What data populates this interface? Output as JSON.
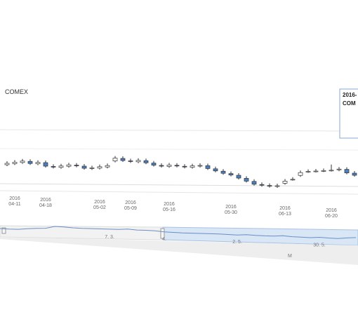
{
  "chart_data": [
    {
      "type": "candlestick",
      "title": "COMEX",
      "categories": [
        null,
        "2016\n04-11",
        null,
        null,
        null,
        "2016\n04-18",
        null,
        null,
        null,
        null,
        null,
        null,
        "2016\n05-02",
        null,
        null,
        null,
        "2016\n05-09",
        null,
        null,
        null,
        null,
        "2016\n05-16",
        null,
        null,
        null,
        null,
        null,
        null,
        null,
        "2016\n05-30",
        null,
        null,
        null,
        null,
        null,
        null,
        "2016\n06-13",
        null,
        null,
        null,
        null,
        null,
        "2016\n06-20",
        null,
        null,
        null
      ],
      "open": [
        45,
        47,
        49,
        51,
        48,
        50,
        45,
        44,
        46,
        48,
        47,
        44,
        45,
        47,
        56,
        60,
        57,
        56,
        58,
        55,
        52,
        51,
        53,
        52,
        51,
        53,
        54,
        50,
        47,
        44,
        42,
        38,
        34,
        30,
        29,
        28,
        33,
        39,
        45,
        51,
        52,
        53,
        54,
        55,
        56,
        51
      ],
      "high": [
        50,
        52,
        54,
        54,
        53,
        53,
        48,
        49,
        51,
        51,
        50,
        48,
        50,
        52,
        63,
        63,
        60,
        61,
        61,
        58,
        55,
        56,
        56,
        55,
        56,
        57,
        57,
        53,
        50,
        47,
        45,
        41,
        37,
        33,
        32,
        32,
        39,
        42,
        52,
        54,
        55,
        56,
        62,
        59,
        59,
        54
      ],
      "low": [
        43,
        45,
        47,
        46,
        46,
        43,
        42,
        42,
        44,
        45,
        42,
        42,
        43,
        45,
        54,
        55,
        54,
        54,
        53,
        50,
        49,
        49,
        50,
        49,
        49,
        51,
        48,
        45,
        42,
        40,
        36,
        32,
        28,
        27,
        26,
        26,
        31,
        37,
        43,
        49,
        50,
        51,
        52,
        53,
        49,
        46
      ],
      "close": [
        47,
        49,
        51,
        48,
        50,
        45,
        44,
        46,
        48,
        47,
        44,
        45,
        47,
        49,
        60,
        57,
        56,
        58,
        55,
        52,
        51,
        53,
        52,
        51,
        53,
        54,
        50,
        47,
        44,
        42,
        38,
        34,
        30,
        29,
        28,
        29,
        36,
        39,
        49,
        51,
        52,
        53,
        54,
        56,
        51,
        48
      ],
      "up_color": "#ffffff",
      "down_color": "#4a7fc1",
      "ylim": [
        0,
        100
      ],
      "tooltip": {
        "date": "2016-",
        "series": "COM"
      }
    },
    {
      "type": "line",
      "color": "#6a8fc2",
      "ylim": [
        0,
        100
      ],
      "values": [
        60,
        58,
        57,
        60,
        62,
        63,
        72,
        70,
        66,
        64,
        63,
        62,
        61,
        60,
        62,
        58,
        57,
        55,
        50,
        48,
        46,
        45,
        44,
        43,
        42,
        40,
        38,
        40,
        37,
        35,
        34,
        36,
        32,
        30,
        28,
        30,
        27,
        25,
        28,
        30
      ],
      "categories": [
        null,
        null,
        null,
        null,
        null,
        null,
        null,
        null,
        null,
        null,
        null,
        null,
        "7. 3.",
        null,
        null,
        null,
        null,
        null,
        "4.",
        null,
        null,
        null,
        null,
        null,
        null,
        null,
        "2. 5.",
        null,
        null,
        null,
        null,
        null,
        null,
        null,
        null,
        "30. 5.",
        null,
        null,
        null,
        null
      ],
      "annotation": "M"
    }
  ]
}
